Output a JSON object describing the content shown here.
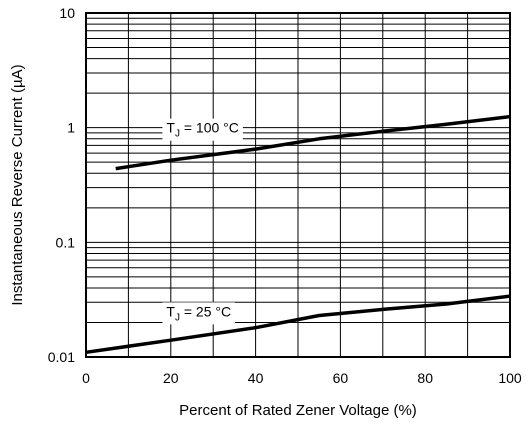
{
  "chart_data": {
    "type": "line",
    "xlabel": "Percent of Rated Zener Voltage (%)",
    "ylabel": "Instantaneous Reverse Current (µA)",
    "xlim": [
      0,
      100
    ],
    "ylim": [
      0.01,
      10
    ],
    "yscale": "log",
    "grid": "on",
    "x_ticks": [
      0,
      20,
      40,
      60,
      80,
      100
    ],
    "x_tick_labels": [
      "0",
      "20",
      "40",
      "60",
      "80",
      "100"
    ],
    "y_ticks": [
      0.01,
      0.1,
      1,
      10
    ],
    "y_tick_labels": [
      "0.01",
      "0.1",
      "1",
      "10"
    ],
    "series": [
      {
        "x": [
          7,
          20,
          40,
          55,
          70,
          85,
          100
        ],
        "y": [
          0.44,
          0.52,
          0.65,
          0.8,
          0.93,
          1.07,
          1.25
        ]
      },
      {
        "x": [
          0,
          20,
          40,
          55,
          70,
          85,
          100
        ],
        "y": [
          0.011,
          0.014,
          0.018,
          0.023,
          0.026,
          0.029,
          0.034
        ]
      }
    ],
    "annotations": [
      {
        "prefix": "T",
        "sub": "J",
        "suffix": " = 100 °C",
        "x": 10,
        "y": 1.0
      },
      {
        "prefix": "T",
        "sub": "J",
        "suffix": " = 25 °C",
        "x": 10,
        "y": 0.025
      }
    ]
  }
}
